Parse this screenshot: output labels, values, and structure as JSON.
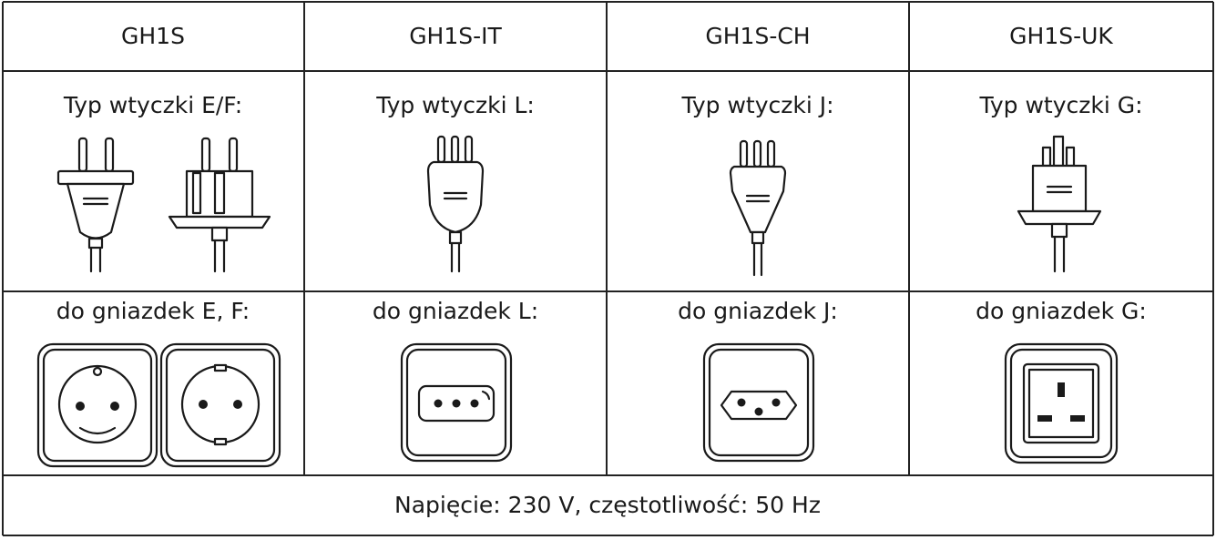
{
  "table": {
    "header": [
      "GH1S",
      "GH1S-IT",
      "GH1S-CH",
      "GH1S-UK"
    ],
    "plug_types": [
      "Typ wtyczki E/F:",
      "Typ wtyczki L:",
      "Typ wtyczki J:",
      "Typ wtyczki G:"
    ],
    "socket_types": [
      "do gniazdek E, F:",
      "do gniazdek L:",
      "do gniazdek J:",
      "do gniazdek G:"
    ],
    "footer": "Napięcie: 230 V, częstotliwość: 50 Hz"
  }
}
